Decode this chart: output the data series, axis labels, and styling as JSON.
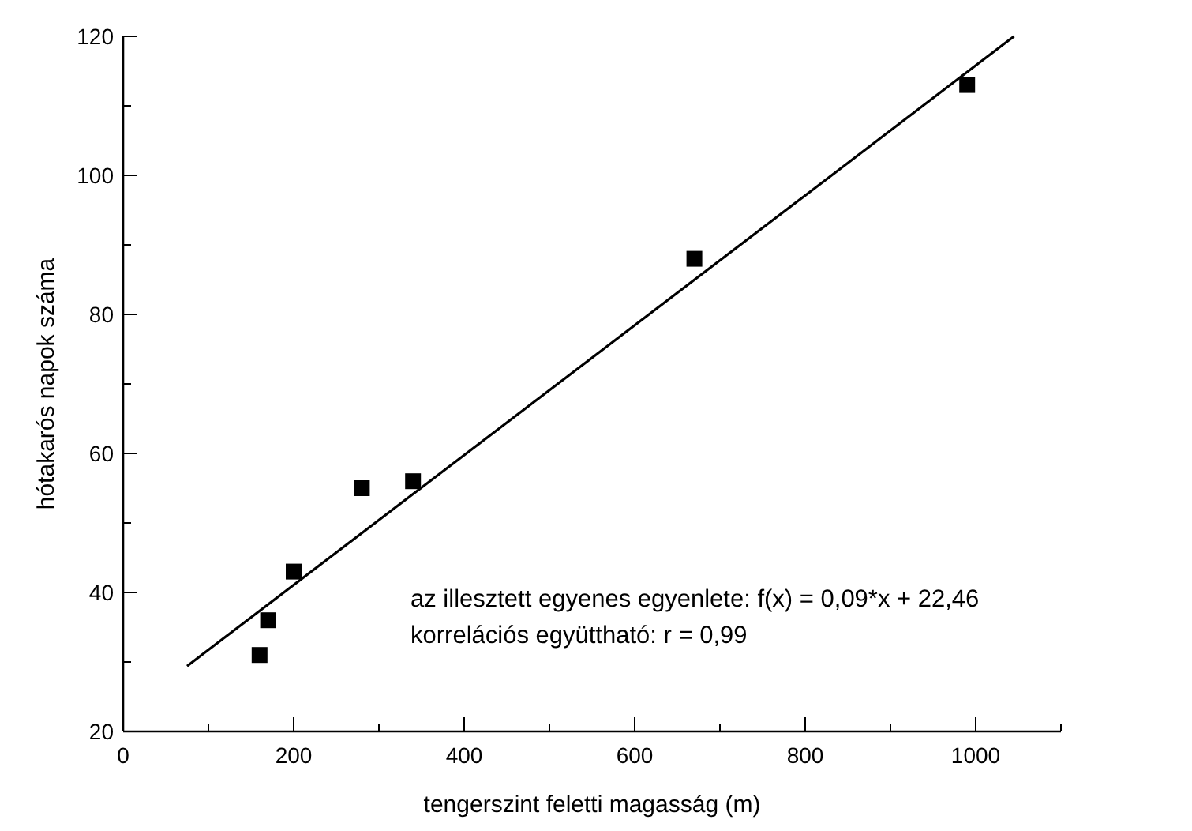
{
  "chart_data": {
    "type": "scatter",
    "xlabel": "tengerszint feletti magasság (m)",
    "ylabel": "hótakarós napok száma",
    "xlim": [
      0,
      1100
    ],
    "ylim": [
      20,
      120
    ],
    "xticks": [
      0,
      {
        "value": 100,
        "label": null
      },
      200,
      {
        "value": 300,
        "label": null
      },
      400,
      {
        "value": 500,
        "label": null
      },
      600,
      {
        "value": 700,
        "label": null
      },
      800,
      {
        "value": 900,
        "label": null
      },
      1000,
      {
        "value": 1100,
        "label": null
      }
    ],
    "yticks": [
      20,
      {
        "value": 30,
        "label": null
      },
      40,
      {
        "value": 50,
        "label": null
      },
      60,
      {
        "value": 70,
        "label": null
      },
      80,
      {
        "value": 90,
        "label": null
      },
      100,
      {
        "value": 110,
        "label": null
      },
      120
    ],
    "grid": false,
    "series": [
      {
        "marker": "square",
        "color": "#000000",
        "x": [
          160,
          170,
          200,
          280,
          340,
          670,
          990
        ],
        "values": [
          31,
          36,
          43,
          55,
          56,
          88,
          113
        ]
      },
      {
        "type": "line",
        "color": "#000000",
        "x": [
          75,
          1045
        ],
        "values": [
          29.4,
          120
        ]
      }
    ],
    "annotations": [
      "az illesztett egyenes egyenlete: f(x) = 0,09*x + 22,46",
      "korrelációs együttható: r = 0,99"
    ]
  }
}
